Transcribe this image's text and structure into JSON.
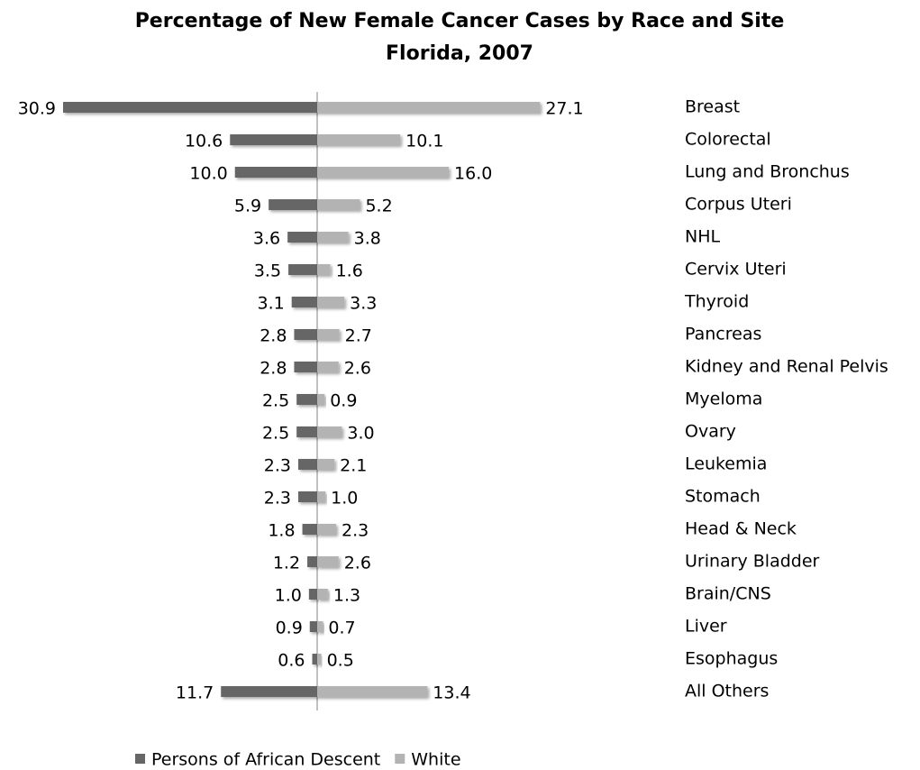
{
  "chart_data": {
    "type": "diverging_bar",
    "title": "Percentage of New Female Cancer Cases by Race and Site",
    "subtitle": "Florida, 2007",
    "categories": [
      "Breast",
      "Colorectal",
      "Lung and Bronchus",
      "Corpus Uteri",
      "NHL",
      "Cervix Uteri",
      "Thyroid",
      "Pancreas",
      "Kidney and Renal Pelvis",
      "Myeloma",
      "Ovary",
      "Leukemia",
      "Stomach",
      "Head & Neck",
      "Urinary Bladder",
      "Brain/CNS",
      "Liver",
      "Esophagus",
      "All Others"
    ],
    "series": [
      {
        "name": "Persons of African Descent",
        "color": "#666666",
        "values": [
          30.9,
          10.6,
          10,
          5.9,
          3.6,
          3.5,
          3.1,
          2.8,
          2.8,
          2.5,
          2.5,
          2.3,
          2.3,
          1.8,
          1.2,
          1,
          0.9,
          0.6,
          11.7
        ],
        "value_labels": [
          "30.9",
          "10.6",
          "10.0",
          "5.9",
          "3.6",
          "3.5",
          "3.1",
          "2.8",
          "2.8",
          "2.5",
          "2.5",
          "2.3",
          "2.3",
          "1.8",
          "1.2",
          "1.0",
          "0.9",
          "0.6",
          "11.7"
        ]
      },
      {
        "name": "White",
        "color": "#b3b3b3",
        "values": [
          27.1,
          10.1,
          16,
          5.2,
          3.8,
          1.6,
          3.3,
          2.7,
          2.6,
          0.9,
          3,
          2.1,
          1,
          2.3,
          2.6,
          1.3,
          0.7,
          0.5,
          13.4
        ],
        "value_labels": [
          "27.1",
          "10.1",
          "16.0",
          "5.2",
          "3.8",
          "1.6",
          "3.3",
          "2.7",
          "2.6",
          "0.9",
          "3.0",
          "2.1",
          "1.0",
          "2.3",
          "2.6",
          "1.3",
          "0.7",
          "0.5",
          "13.4"
        ]
      }
    ],
    "legend": "bottom"
  }
}
